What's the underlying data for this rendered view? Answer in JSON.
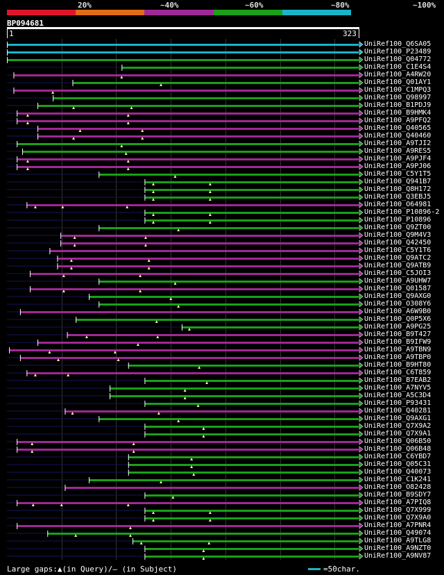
{
  "scale": {
    "labels": [
      "20%",
      "~40%",
      "~60%",
      "~80%",
      "~100%"
    ],
    "colors": [
      "#e0142c",
      "#e06c14",
      "#a02896",
      "#19a019",
      "#19b4c8"
    ]
  },
  "query": {
    "name": "BP094681",
    "start": "1",
    "end": "323",
    "length": 323
  },
  "hits": [
    {
      "name": "UniRef100_Q6SA05",
      "s": 1,
      "e": 323,
      "c": 4,
      "g": []
    },
    {
      "name": "UniRef100_P23489",
      "s": 1,
      "e": 323,
      "c": 4,
      "g": []
    },
    {
      "name": "UniRef100_Q04772",
      "s": 1,
      "e": 323,
      "c": 3,
      "g": []
    },
    {
      "name": "UniRef100_C1E4S4",
      "s": 106,
      "e": 323,
      "c": 3,
      "g": []
    },
    {
      "name": "UniRef100_A4RW20",
      "s": 7,
      "e": 323,
      "c": 2,
      "g": [
        106
      ]
    },
    {
      "name": "UniRef100_Q01AY1",
      "s": 61,
      "e": 323,
      "c": 3,
      "g": [
        142
      ]
    },
    {
      "name": "UniRef100_C1MPQ3",
      "s": 7,
      "e": 323,
      "c": 2,
      "g": [
        43
      ]
    },
    {
      "name": "UniRef100_Q98997",
      "s": 43,
      "e": 323,
      "c": 3,
      "g": []
    },
    {
      "name": "UniRef100_B1PDJ9",
      "s": 29,
      "e": 323,
      "c": 3,
      "g": [
        62,
        115
      ]
    },
    {
      "name": "UniRef100_B9HMK4",
      "s": 10,
      "e": 323,
      "c": 2,
      "g": [
        20,
        112
      ]
    },
    {
      "name": "UniRef100_A9PFQ2",
      "s": 10,
      "e": 323,
      "c": 2,
      "g": [
        20,
        112
      ]
    },
    {
      "name": "UniRef100_Q40565",
      "s": 29,
      "e": 323,
      "c": 2,
      "g": [
        68,
        125
      ]
    },
    {
      "name": "UniRef100_Q40460",
      "s": 29,
      "e": 323,
      "c": 2,
      "g": [
        62,
        125
      ]
    },
    {
      "name": "UniRef100_A9TJI2",
      "s": 10,
      "e": 323,
      "c": 3,
      "g": [
        106
      ]
    },
    {
      "name": "UniRef100_A9RES5",
      "s": 15,
      "e": 323,
      "c": 3,
      "g": [
        110
      ]
    },
    {
      "name": "UniRef100_A9PJF4",
      "s": 10,
      "e": 323,
      "c": 2,
      "g": [
        20,
        112
      ]
    },
    {
      "name": "UniRef100_A9PJ06",
      "s": 10,
      "e": 323,
      "c": 2,
      "g": [
        20,
        112
      ]
    },
    {
      "name": "UniRef100_C5Y1T5",
      "s": 85,
      "e": 323,
      "c": 3,
      "g": [
        155
      ]
    },
    {
      "name": "UniRef100_Q941B7",
      "s": 127,
      "e": 323,
      "c": 3,
      "g": [
        135,
        187
      ]
    },
    {
      "name": "UniRef100_Q8H172",
      "s": 127,
      "e": 323,
      "c": 3,
      "g": [
        135,
        187
      ]
    },
    {
      "name": "UniRef100_Q3EBJ5",
      "s": 127,
      "e": 323,
      "c": 3,
      "g": [
        135,
        187
      ]
    },
    {
      "name": "UniRef100_O64981",
      "s": 19,
      "e": 323,
      "c": 2,
      "g": [
        27,
        52,
        111
      ]
    },
    {
      "name": "UniRef100_P10896-2",
      "s": 127,
      "e": 323,
      "c": 3,
      "g": [
        135,
        187
      ]
    },
    {
      "name": "UniRef100_P10896",
      "s": 127,
      "e": 323,
      "c": 3,
      "g": [
        135,
        187
      ]
    },
    {
      "name": "UniRef100_Q9ZT00",
      "s": 85,
      "e": 323,
      "c": 3,
      "g": [
        158
      ]
    },
    {
      "name": "UniRef100_Q9M4V3",
      "s": 50,
      "e": 323,
      "c": 2,
      "g": [
        63,
        128
      ]
    },
    {
      "name": "UniRef100_Q42450",
      "s": 50,
      "e": 323,
      "c": 2,
      "g": [
        63,
        128
      ]
    },
    {
      "name": "UniRef100_C5Y1T6",
      "s": 40,
      "e": 323,
      "c": 2,
      "g": []
    },
    {
      "name": "UniRef100_Q9ATC2",
      "s": 47,
      "e": 323,
      "c": 2,
      "g": [
        60,
        131
      ]
    },
    {
      "name": "UniRef100_Q9ATB9",
      "s": 47,
      "e": 323,
      "c": 2,
      "g": [
        60,
        131
      ]
    },
    {
      "name": "UniRef100_C5JOI3",
      "s": 22,
      "e": 323,
      "c": 2,
      "g": [
        53,
        123
      ]
    },
    {
      "name": "UniRef100_A9UHW7",
      "s": 85,
      "e": 323,
      "c": 3,
      "g": [
        155
      ]
    },
    {
      "name": "UniRef100_Q01587",
      "s": 22,
      "e": 323,
      "c": 2,
      "g": [
        53,
        123
      ]
    },
    {
      "name": "UniRef100_Q9AXG0",
      "s": 76,
      "e": 323,
      "c": 3,
      "g": [
        151
      ]
    },
    {
      "name": "UniRef100_O308Y6",
      "s": 85,
      "e": 323,
      "c": 3,
      "g": [
        158
      ]
    },
    {
      "name": "UniRef100_A6W9B0",
      "s": 13,
      "e": 323,
      "c": 2,
      "g": []
    },
    {
      "name": "UniRef100_Q0P5X6",
      "s": 64,
      "e": 323,
      "c": 3,
      "g": [
        138
      ]
    },
    {
      "name": "UniRef100_A9PG25",
      "s": 161,
      "e": 323,
      "c": 3,
      "g": [
        168
      ]
    },
    {
      "name": "UniRef100_B9T427",
      "s": 56,
      "e": 323,
      "c": 2,
      "g": [
        74,
        139
      ]
    },
    {
      "name": "UniRef100_B9IFW9",
      "s": 29,
      "e": 323,
      "c": 2,
      "g": [
        121
      ]
    },
    {
      "name": "UniRef100_A9TBN9",
      "s": 3,
      "e": 323,
      "c": 2,
      "g": [
        40,
        100
      ]
    },
    {
      "name": "UniRef100_A9TBP0",
      "s": 13,
      "e": 323,
      "c": 2,
      "g": [
        48,
        103
      ]
    },
    {
      "name": "UniRef100_B9HT80",
      "s": 112,
      "e": 323,
      "c": 3,
      "g": [
        177
      ]
    },
    {
      "name": "UniRef100_C6T859",
      "s": 19,
      "e": 323,
      "c": 2,
      "g": [
        27,
        57
      ]
    },
    {
      "name": "UniRef100_B7EAB2",
      "s": 127,
      "e": 323,
      "c": 3,
      "g": [
        184
      ]
    },
    {
      "name": "UniRef100_A7NYV5",
      "s": 95,
      "e": 323,
      "c": 3,
      "g": [
        164
      ]
    },
    {
      "name": "UniRef100_A5C3D4",
      "s": 95,
      "e": 323,
      "c": 3,
      "g": [
        164
      ]
    },
    {
      "name": "UniRef100_P93431",
      "s": 127,
      "e": 323,
      "c": 3,
      "g": [
        176
      ]
    },
    {
      "name": "UniRef100_Q40281",
      "s": 54,
      "e": 323,
      "c": 2,
      "g": [
        61,
        140
      ]
    },
    {
      "name": "UniRef100_Q9AXG1",
      "s": 85,
      "e": 323,
      "c": 3,
      "g": [
        158
      ]
    },
    {
      "name": "UniRef100_Q7X9A2",
      "s": 127,
      "e": 323,
      "c": 3,
      "g": [
        181
      ]
    },
    {
      "name": "UniRef100_Q7X9A1",
      "s": 127,
      "e": 323,
      "c": 3,
      "g": [
        181
      ]
    },
    {
      "name": "UniRef100_Q06B50",
      "s": 10,
      "e": 323,
      "c": 2,
      "g": [
        24,
        117
      ]
    },
    {
      "name": "UniRef100_Q06B48",
      "s": 10,
      "e": 323,
      "c": 2,
      "g": [
        24,
        117
      ]
    },
    {
      "name": "UniRef100_C6YBD7",
      "s": 112,
      "e": 323,
      "c": 3,
      "g": [
        170
      ]
    },
    {
      "name": "UniRef100_Q05C31",
      "s": 112,
      "e": 323,
      "c": 3,
      "g": [
        170
      ]
    },
    {
      "name": "UniRef100_Q40073",
      "s": 112,
      "e": 323,
      "c": 3,
      "g": [
        172
      ]
    },
    {
      "name": "UniRef100_C1K241",
      "s": 76,
      "e": 323,
      "c": 3,
      "g": [
        142
      ]
    },
    {
      "name": "UniRef100_O82428",
      "s": 54,
      "e": 323,
      "c": 2,
      "g": []
    },
    {
      "name": "UniRef100_B9SDY7",
      "s": 127,
      "e": 323,
      "c": 3,
      "g": [
        153
      ]
    },
    {
      "name": "UniRef100_A7PIQ8",
      "s": 10,
      "e": 323,
      "c": 2,
      "g": [
        25,
        51,
        112
      ]
    },
    {
      "name": "UniRef100_Q7X999",
      "s": 127,
      "e": 323,
      "c": 3,
      "g": [
        135,
        187
      ]
    },
    {
      "name": "UniRef100_Q7X9A0",
      "s": 127,
      "e": 323,
      "c": 3,
      "g": [
        135,
        187
      ]
    },
    {
      "name": "UniRef100_A7PNR4",
      "s": 10,
      "e": 323,
      "c": 2,
      "g": [
        114
      ]
    },
    {
      "name": "UniRef100_Q49074",
      "s": 38,
      "e": 323,
      "c": 3,
      "g": [
        64,
        114
      ]
    },
    {
      "name": "UniRef100_A9TLG8",
      "s": 116,
      "e": 323,
      "c": 3,
      "g": [
        124,
        186
      ]
    },
    {
      "name": "UniRef100_A9NZT0",
      "s": 127,
      "e": 323,
      "c": 3,
      "g": [
        181
      ]
    },
    {
      "name": "UniRef100_A9NV87",
      "s": 127,
      "e": 323,
      "c": 3,
      "g": [
        181
      ]
    }
  ],
  "legend": {
    "gaps_text": "Large gaps:▲(in Query)/— (in Subject)",
    "scale_text": "=50char."
  }
}
